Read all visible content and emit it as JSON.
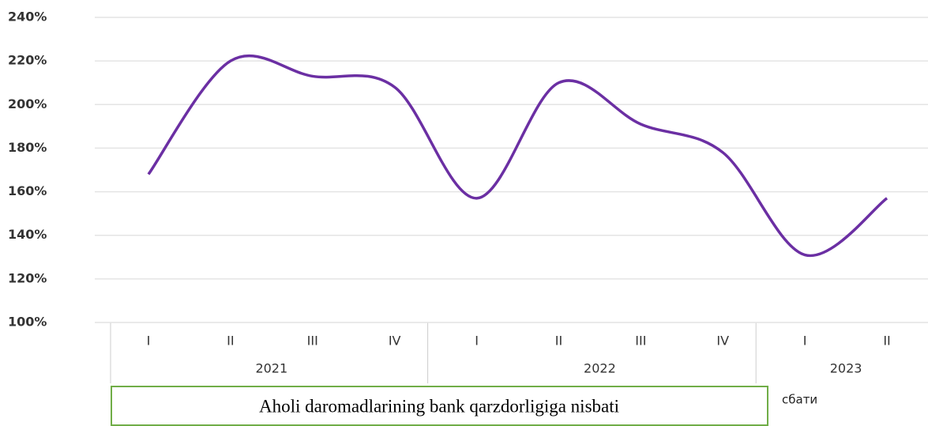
{
  "chart_data": {
    "type": "line",
    "categories": [
      "I",
      "II",
      "III",
      "IV",
      "I",
      "II",
      "III",
      "IV",
      "I",
      "II"
    ],
    "groups": [
      {
        "label": "2021",
        "size": 4
      },
      {
        "label": "2022",
        "size": 4
      },
      {
        "label": "2023",
        "size": 2
      }
    ],
    "series": [
      {
        "name": "Aholi daromadlarining bank qarzdorligiga nisbati",
        "color": "#6b2fa3",
        "values": [
          168,
          220,
          213,
          208,
          157,
          210,
          191,
          178,
          131,
          157
        ]
      }
    ],
    "ylim": [
      100,
      240
    ],
    "yticks": [
      {
        "value": 100,
        "label": "100%"
      },
      {
        "value": 120,
        "label": "120%"
      },
      {
        "value": 140,
        "label": "140%"
      },
      {
        "value": 160,
        "label": "160%"
      },
      {
        "value": 180,
        "label": "180%"
      },
      {
        "value": 200,
        "label": "200%"
      },
      {
        "value": 220,
        "label": "220%"
      },
      {
        "value": 240,
        "label": "240%"
      }
    ],
    "grid": true,
    "fragment_text": "сбати"
  }
}
